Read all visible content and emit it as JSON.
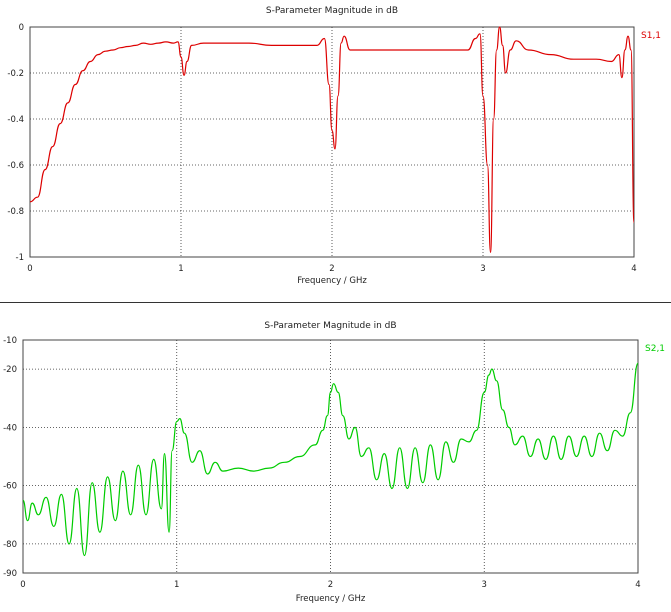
{
  "chart_data": [
    {
      "type": "line",
      "title": "S-Parameter Magnitude in dB",
      "xlabel": "Frequency / GHz",
      "ylabel": "",
      "xlim": [
        0,
        4
      ],
      "ylim": [
        -1,
        0
      ],
      "xticks": [
        "0",
        "1",
        "2",
        "3",
        "4"
      ],
      "yticks": [
        "0",
        "-0.2",
        "-0.4",
        "-0.6",
        "-0.8",
        "-1"
      ],
      "grid": true,
      "series": [
        {
          "name": "S1,1",
          "color": "#dd0000",
          "points": [
            [
              0,
              -0.76
            ],
            [
              0.05,
              -0.74
            ],
            [
              0.1,
              -0.62
            ],
            [
              0.15,
              -0.52
            ],
            [
              0.2,
              -0.42
            ],
            [
              0.25,
              -0.33
            ],
            [
              0.3,
              -0.25
            ],
            [
              0.35,
              -0.19
            ],
            [
              0.4,
              -0.15
            ],
            [
              0.45,
              -0.12
            ],
            [
              0.5,
              -0.105
            ],
            [
              0.55,
              -0.1
            ],
            [
              0.6,
              -0.09
            ],
            [
              0.65,
              -0.085
            ],
            [
              0.7,
              -0.08
            ],
            [
              0.75,
              -0.07
            ],
            [
              0.8,
              -0.075
            ],
            [
              0.85,
              -0.07
            ],
            [
              0.9,
              -0.065
            ],
            [
              0.95,
              -0.07
            ],
            [
              0.98,
              -0.065
            ],
            [
              1.0,
              -0.13
            ],
            [
              1.02,
              -0.21
            ],
            [
              1.04,
              -0.15
            ],
            [
              1.07,
              -0.08
            ],
            [
              1.15,
              -0.07
            ],
            [
              1.3,
              -0.07
            ],
            [
              1.45,
              -0.07
            ],
            [
              1.6,
              -0.08
            ],
            [
              1.75,
              -0.08
            ],
            [
              1.9,
              -0.08
            ],
            [
              1.95,
              -0.05
            ],
            [
              1.98,
              -0.25
            ],
            [
              2.0,
              -0.45
            ],
            [
              2.02,
              -0.53
            ],
            [
              2.04,
              -0.3
            ],
            [
              2.06,
              -0.07
            ],
            [
              2.08,
              -0.04
            ],
            [
              2.12,
              -0.1
            ],
            [
              2.3,
              -0.1
            ],
            [
              2.5,
              -0.1
            ],
            [
              2.7,
              -0.1
            ],
            [
              2.9,
              -0.1
            ],
            [
              2.95,
              -0.05
            ],
            [
              2.98,
              -0.03
            ],
            [
              3.0,
              -0.3
            ],
            [
              3.03,
              -0.6
            ],
            [
              3.05,
              -0.98
            ],
            [
              3.07,
              -0.4
            ],
            [
              3.09,
              -0.1
            ],
            [
              3.11,
              -0.0
            ],
            [
              3.13,
              -0.08
            ],
            [
              3.15,
              -0.2
            ],
            [
              3.18,
              -0.1
            ],
            [
              3.22,
              -0.06
            ],
            [
              3.3,
              -0.1
            ],
            [
              3.45,
              -0.12
            ],
            [
              3.6,
              -0.14
            ],
            [
              3.75,
              -0.14
            ],
            [
              3.85,
              -0.15
            ],
            [
              3.9,
              -0.12
            ],
            [
              3.92,
              -0.22
            ],
            [
              3.94,
              -0.1
            ],
            [
              3.96,
              -0.04
            ],
            [
              3.98,
              -0.1
            ],
            [
              4.0,
              -0.85
            ]
          ]
        }
      ]
    },
    {
      "type": "line",
      "title": "S-Parameter Magnitude in dB",
      "xlabel": "Frequency / GHz",
      "ylabel": "",
      "xlim": [
        0,
        4
      ],
      "ylim": [
        -90,
        -10
      ],
      "xticks": [
        "0",
        "1",
        "2",
        "3",
        "4"
      ],
      "yticks": [
        "-10",
        "-20",
        "-40",
        "-60",
        "-80",
        "-90"
      ],
      "grid": true,
      "series": [
        {
          "name": "S2,1",
          "color": "#00cc00",
          "points": [
            [
              0,
              -65
            ],
            [
              0.03,
              -72
            ],
            [
              0.06,
              -66
            ],
            [
              0.1,
              -70
            ],
            [
              0.15,
              -64
            ],
            [
              0.2,
              -74
            ],
            [
              0.25,
              -63
            ],
            [
              0.3,
              -80
            ],
            [
              0.35,
              -61
            ],
            [
              0.4,
              -84
            ],
            [
              0.45,
              -59
            ],
            [
              0.5,
              -76
            ],
            [
              0.55,
              -57
            ],
            [
              0.6,
              -72
            ],
            [
              0.65,
              -55
            ],
            [
              0.7,
              -70
            ],
            [
              0.75,
              -53
            ],
            [
              0.8,
              -70
            ],
            [
              0.85,
              -51
            ],
            [
              0.9,
              -68
            ],
            [
              0.92,
              -49
            ],
            [
              0.95,
              -76
            ],
            [
              0.97,
              -48
            ],
            [
              1.0,
              -38
            ],
            [
              1.02,
              -37
            ],
            [
              1.05,
              -42
            ],
            [
              1.1,
              -52
            ],
            [
              1.15,
              -48
            ],
            [
              1.2,
              -56
            ],
            [
              1.25,
              -52
            ],
            [
              1.3,
              -55
            ],
            [
              1.4,
              -54
            ],
            [
              1.5,
              -55
            ],
            [
              1.6,
              -54
            ],
            [
              1.7,
              -52
            ],
            [
              1.8,
              -50
            ],
            [
              1.9,
              -46
            ],
            [
              1.95,
              -41
            ],
            [
              1.98,
              -36
            ],
            [
              2.0,
              -28
            ],
            [
              2.02,
              -25
            ],
            [
              2.05,
              -28
            ],
            [
              2.08,
              -36
            ],
            [
              2.12,
              -44
            ],
            [
              2.16,
              -40
            ],
            [
              2.2,
              -50
            ],
            [
              2.25,
              -47
            ],
            [
              2.3,
              -58
            ],
            [
              2.35,
              -49
            ],
            [
              2.4,
              -61
            ],
            [
              2.45,
              -47
            ],
            [
              2.5,
              -61
            ],
            [
              2.55,
              -47
            ],
            [
              2.6,
              -59
            ],
            [
              2.65,
              -46
            ],
            [
              2.7,
              -58
            ],
            [
              2.75,
              -45
            ],
            [
              2.8,
              -52
            ],
            [
              2.85,
              -44
            ],
            [
              2.9,
              -45
            ],
            [
              2.95,
              -41
            ],
            [
              3.0,
              -28
            ],
            [
              3.03,
              -22
            ],
            [
              3.05,
              -20
            ],
            [
              3.08,
              -24
            ],
            [
              3.12,
              -34
            ],
            [
              3.16,
              -40
            ],
            [
              3.2,
              -46
            ],
            [
              3.25,
              -43
            ],
            [
              3.3,
              -50
            ],
            [
              3.35,
              -44
            ],
            [
              3.4,
              -51
            ],
            [
              3.45,
              -43
            ],
            [
              3.5,
              -51
            ],
            [
              3.55,
              -43
            ],
            [
              3.6,
              -50
            ],
            [
              3.65,
              -43
            ],
            [
              3.7,
              -50
            ],
            [
              3.75,
              -42
            ],
            [
              3.8,
              -48
            ],
            [
              3.85,
              -41
            ],
            [
              3.9,
              -43
            ],
            [
              3.95,
              -35
            ],
            [
              4.0,
              -18
            ]
          ]
        }
      ]
    }
  ]
}
